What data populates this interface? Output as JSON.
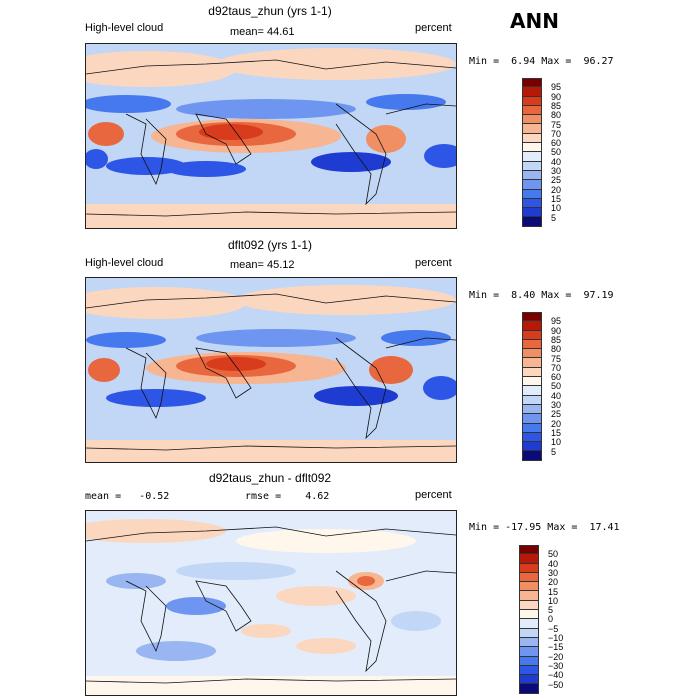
{
  "season": "ANN",
  "colors": {
    "levels": [
      "#0a0a78",
      "#1e3cd2",
      "#2d55e6",
      "#4678ee",
      "#6e96f0",
      "#9ab6f2",
      "#c2d6f6",
      "#e2ecfa",
      "#fff7ec",
      "#fcd7c0",
      "#f7b591",
      "#f08f64",
      "#e8673e",
      "#d93c1c",
      "#b81808",
      "#7a0000"
    ]
  },
  "panels": [
    {
      "title": "d92taus_zhun (yrs 1-1)",
      "left_label": "High-level cloud",
      "center_label": "mean=  44.61",
      "right_label": "percent",
      "min_label": "Min =",
      "min_value": "6.94",
      "max_label": "Max =",
      "max_value": "96.27",
      "colorbar_labels": [
        "95",
        "90",
        "85",
        "80",
        "75",
        "70",
        "60",
        "50",
        "40",
        "30",
        "25",
        "20",
        "15",
        "10",
        "5"
      ]
    },
    {
      "title": "dflt092 (yrs 1-1)",
      "left_label": "High-level cloud",
      "center_label": "mean=  45.12",
      "right_label": "percent",
      "min_label": "Min =",
      "min_value": "8.40",
      "max_label": "Max =",
      "max_value": "97.19",
      "colorbar_labels": [
        "95",
        "90",
        "85",
        "80",
        "75",
        "70",
        "60",
        "50",
        "40",
        "30",
        "25",
        "20",
        "15",
        "10",
        "5"
      ]
    },
    {
      "title": "d92taus_zhun - dflt092",
      "left_label": "mean =   -0.52",
      "center_label": "rmse =    4.62",
      "right_label": "percent",
      "min_label": "Min =",
      "min_value": "-17.95",
      "max_label": "Max =",
      "max_value": "17.41",
      "colorbar_labels": [
        "50",
        "40",
        "30",
        "20",
        "15",
        "10",
        "5",
        "0",
        "−5",
        "−10",
        "−15",
        "−20",
        "−30",
        "−40",
        "−50"
      ]
    }
  ]
}
